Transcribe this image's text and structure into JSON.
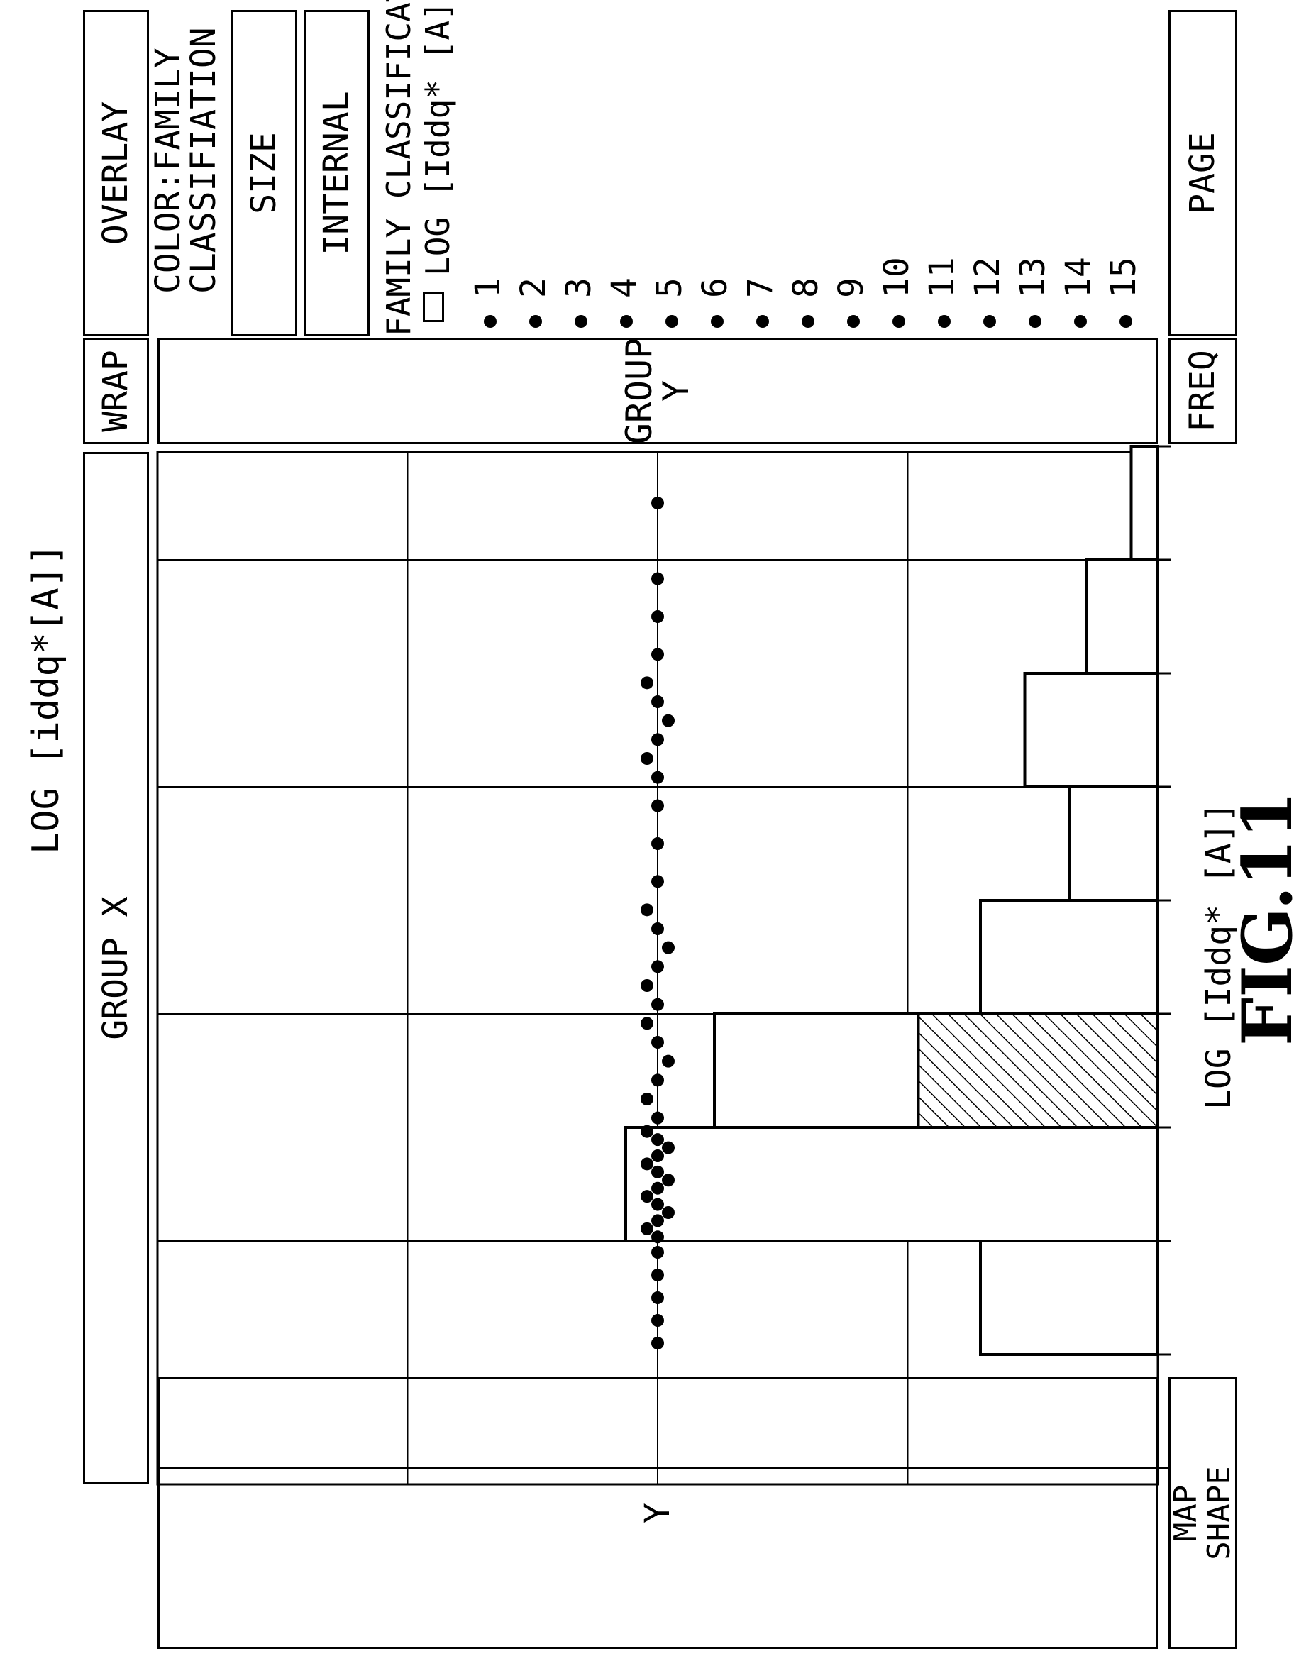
{
  "controls": {
    "wrap": "WRAP",
    "group_x": "GROUP X",
    "group_y": "GROUP Y",
    "y": "Y",
    "overlay": "OVERLAY",
    "color": "COLOR:FAMILY\nCLASSIFIATION",
    "size": "SIZE",
    "internal": "INTERNAL",
    "freq": "FREQ",
    "page": "PAGE",
    "map_shape": "MAP\nSHAPE"
  },
  "legend": {
    "title": "FAMILY CLASSIFICATION",
    "subtitle": "LOG [Iddq* [A]]",
    "items": [
      "1",
      "2",
      "3",
      "4",
      "5",
      "6",
      "7",
      "8",
      "9",
      "10",
      "11",
      "12",
      "13",
      "14",
      "15"
    ]
  },
  "figure_label": "FIG.11",
  "chart_data": {
    "type": "scatter",
    "title": "LOG [iddq*[A]]",
    "xlabel": "LOG [Iddq* [A]]",
    "histogram": {
      "bins": 9,
      "frequency": [
        0,
        2,
        6,
        5,
        2,
        1,
        1.5,
        0.8,
        0.3
      ],
      "hatched": [
        0,
        0,
        0,
        2.7,
        0,
        0,
        0,
        0,
        0
      ]
    },
    "points_per_bin": [
      0,
      5,
      14,
      6,
      6,
      3,
      6,
      3,
      1
    ]
  }
}
